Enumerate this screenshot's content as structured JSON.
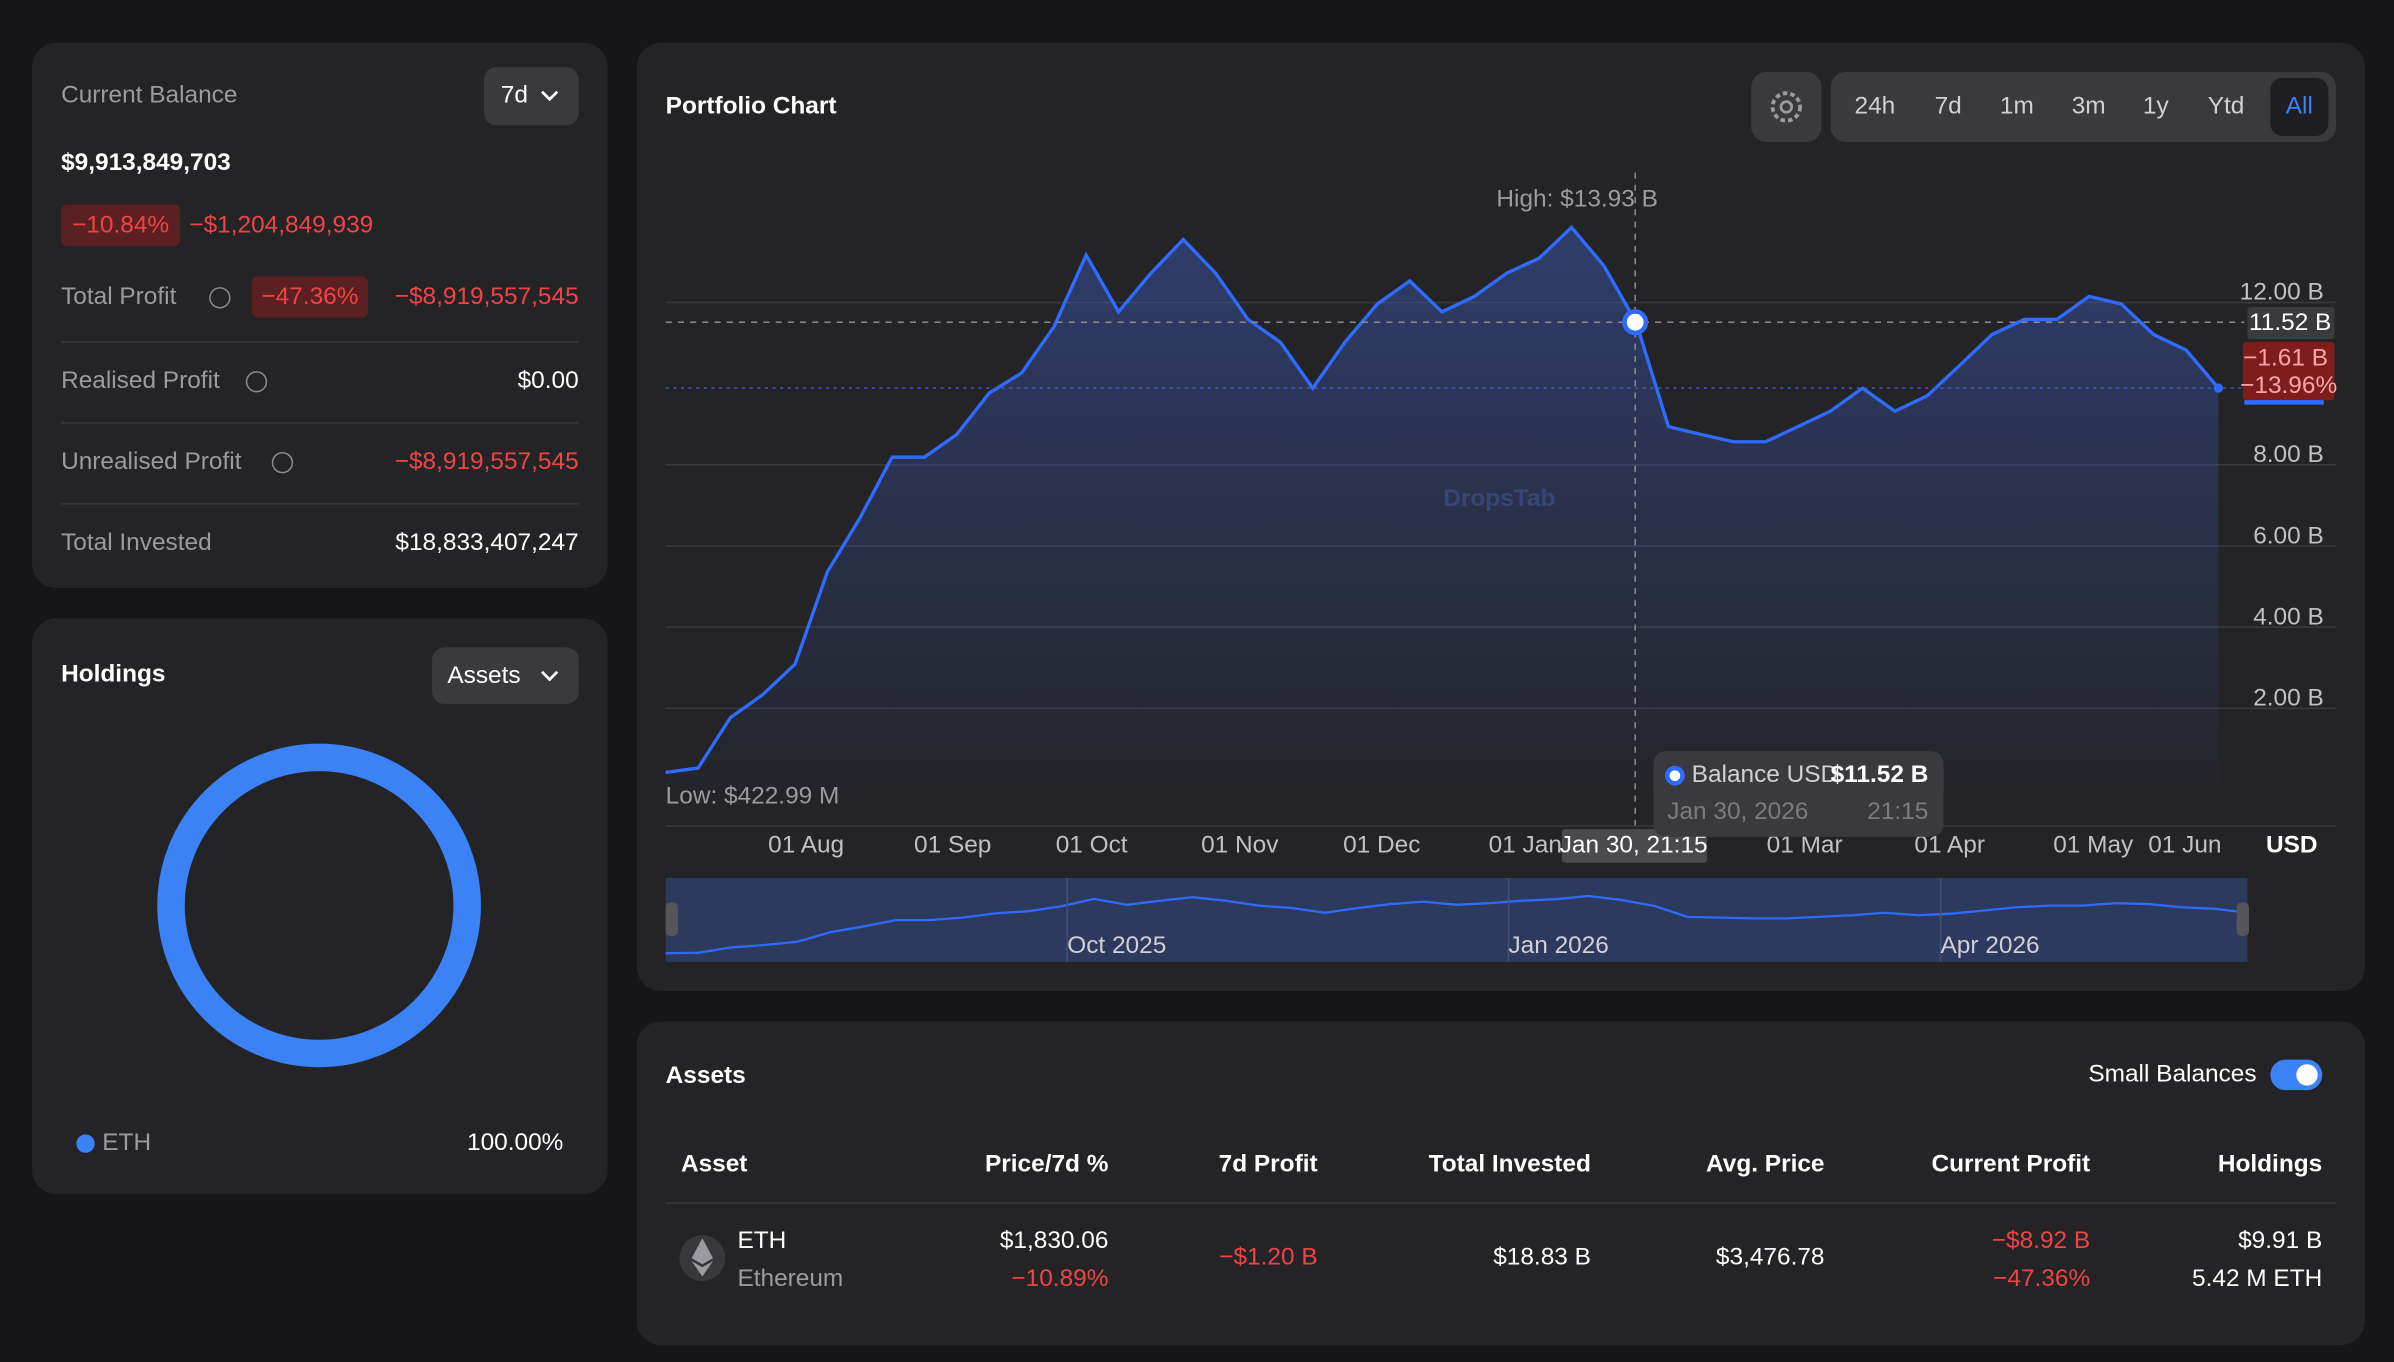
{
  "balance_card": {
    "label": "Current Balance",
    "period": "7d",
    "balance": "$9,913,849,703",
    "change_pct": "−10.84%",
    "change_abs": "−$1,204,849,939",
    "rows": [
      {
        "label": "Total Profit",
        "badge": "−47.36%",
        "value": "−$8,919,557,545"
      },
      {
        "label": "Realised Profit",
        "value": "$0.00"
      },
      {
        "label": "Unrealised Profit",
        "value": "−$8,919,557,545"
      },
      {
        "label": "Total Invested",
        "value": "$18,833,407,247"
      }
    ]
  },
  "holdings": {
    "title": "Holdings",
    "dropdown": "Assets",
    "chart": {
      "type": "donut",
      "categories": [
        "ETH"
      ],
      "values": [
        100
      ],
      "value_labels": [
        "100.00%"
      ],
      "color": "#3b82f6"
    }
  },
  "portfolio_chart": {
    "title": "Portfolio Chart",
    "ranges": [
      "24h",
      "7d",
      "1m",
      "3m",
      "1y",
      "Ytd",
      "All"
    ],
    "active_range": "All",
    "type": "line",
    "color": "#2f6bff",
    "values": [
      0.42,
      0.53,
      1.77,
      2.34,
      3.09,
      5.36,
      6.68,
      8.19,
      8.19,
      8.75,
      9.77,
      10.26,
      11.4,
      13.17,
      11.77,
      12.72,
      13.55,
      12.72,
      11.58,
      11.02,
      9.89,
      11.02,
      11.96,
      12.53,
      11.77,
      12.15,
      12.72,
      13.09,
      13.85,
      12.91,
      11.51,
      8.94,
      8.75,
      8.57,
      8.57,
      8.94,
      9.32,
      9.89,
      9.32,
      9.7,
      10.45,
      11.21,
      11.58,
      11.58,
      12.15,
      11.96,
      11.21,
      10.83,
      9.89
    ],
    "ylim": [
      -0.9,
      15.2
    ],
    "yticks": [
      {
        "value": 2,
        "label": "2.00 B"
      },
      {
        "value": 4,
        "label": "4.00 B"
      },
      {
        "value": 6,
        "label": "6.00 B"
      },
      {
        "value": 8,
        "label": "8.00 B"
      },
      {
        "value": 12,
        "label": "12.00 B"
      }
    ],
    "xticks": [
      "01 Aug",
      "01 Sep",
      "01 Oct",
      "01 Nov",
      "01 Dec",
      "01 Jan",
      "01 Mar",
      "01 Apr",
      "01 May",
      "01 Jun"
    ],
    "x_unit": "USD",
    "high_label": "High: $13.93 B",
    "low_label": "Low: $422.99 M",
    "watermark": "DropsTab",
    "crosshair_label": "Jan 30, 21:15",
    "price_tag": "11.52 B",
    "change_tag": "−1.61 B",
    "change_pct_tag": "−13.96%",
    "tooltip": {
      "series": "Balance USD",
      "value": "$11.52 B",
      "date": "Jan 30, 2026",
      "time": "21:15"
    },
    "navigator_labels": [
      "Oct 2025",
      "Jan 2026",
      "Apr 2026"
    ]
  },
  "assets": {
    "title": "Assets",
    "toggle_label": "Small Balances",
    "columns": [
      "Asset",
      "Price/7d %",
      "7d Profit",
      "Total Invested",
      "Avg. Price",
      "Current Profit",
      "Holdings"
    ],
    "rows": [
      {
        "symbol": "ETH",
        "name": "Ethereum",
        "price": "$1,830.06",
        "price_change": "−10.89%",
        "profit_7d": "−$1.20 B",
        "invested": "$18.83 B",
        "avg_price": "$3,476.78",
        "current_profit": "−$8.92 B",
        "current_profit_pct": "−47.36%",
        "holdings": "$9.91 B",
        "holdings_qty": "5.42 M ETH"
      }
    ]
  }
}
